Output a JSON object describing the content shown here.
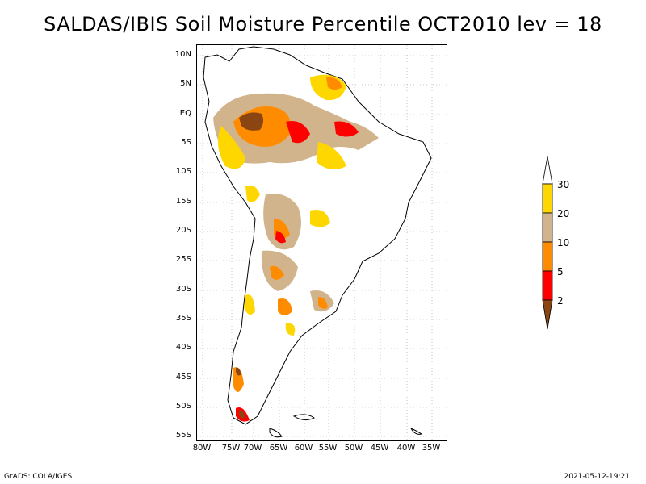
{
  "title": "SALDAS/IBIS Soil Moisture Percentile OCT2010 lev = 18",
  "y_axis": [
    "10N",
    "5N",
    "EQ",
    "5S",
    "10S",
    "15S",
    "20S",
    "25S",
    "30S",
    "35S",
    "40S",
    "45S",
    "50S",
    "55S"
  ],
  "x_axis": [
    "80W",
    "75W",
    "70W",
    "65W",
    "60W",
    "55W",
    "50W",
    "45W",
    "40W",
    "35W"
  ],
  "colorbar": {
    "labels": [
      "30",
      "20",
      "10",
      "5",
      "2"
    ],
    "colors": {
      "top_arrow": "#ffffff",
      "c30": "#ffd700",
      "c20": "#d2b48c",
      "c10": "#ff8c00",
      "c5": "#ff0000",
      "c2": "#8b4513"
    }
  },
  "footer": {
    "left": "GrADS: COLA/IGES",
    "right": "2021-05-12-19:21"
  }
}
